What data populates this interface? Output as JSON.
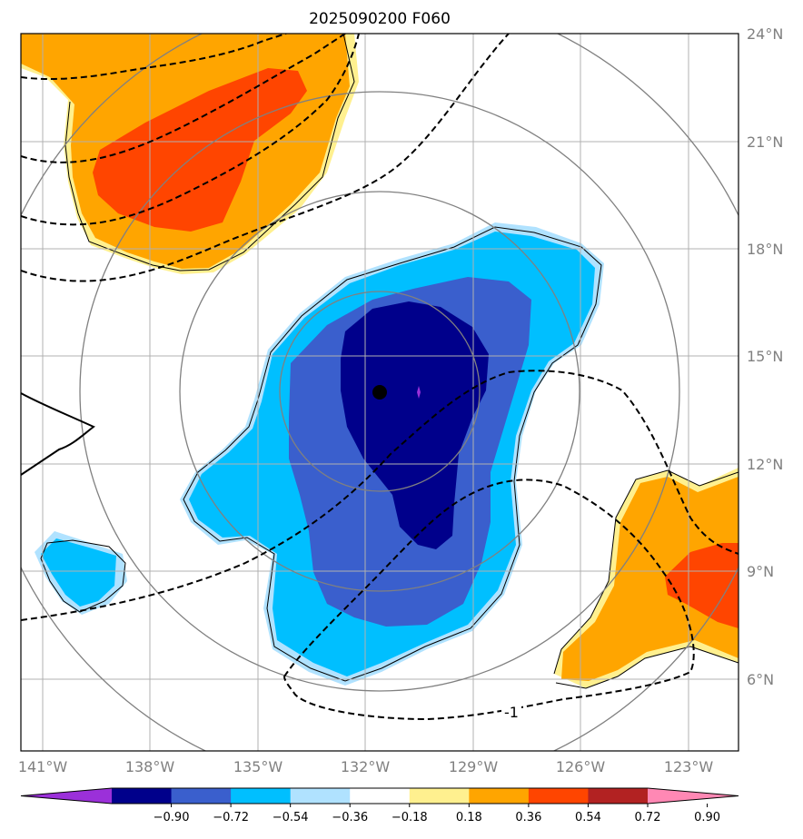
{
  "title": "2025090200 F060",
  "lat_ticks": [
    "24°N",
    "21°N",
    "18°N",
    "15°N",
    "12°N",
    "9°N",
    "6°N"
  ],
  "lon_ticks": [
    "141°W",
    "138°W",
    "135°W",
    "132°W",
    "129°W",
    "126°W",
    "123°W"
  ],
  "colorbar": {
    "colors": [
      "#9b30d9",
      "#00008b",
      "#3a5fcd",
      "#00bfff",
      "#b0e2ff",
      "#ffffff",
      "#fff08f",
      "#ffa500",
      "#ff4500",
      "#b22222",
      "#ff88b4"
    ],
    "labels": [
      "−0.90",
      "−0.72",
      "−0.54",
      "−0.36",
      "−0.18",
      "0.18",
      "0.36",
      "0.54",
      "0.72",
      "0.90"
    ]
  },
  "contour_label": "-1",
  "storm_center": {
    "lon": -131.6,
    "lat": 14.0
  }
}
